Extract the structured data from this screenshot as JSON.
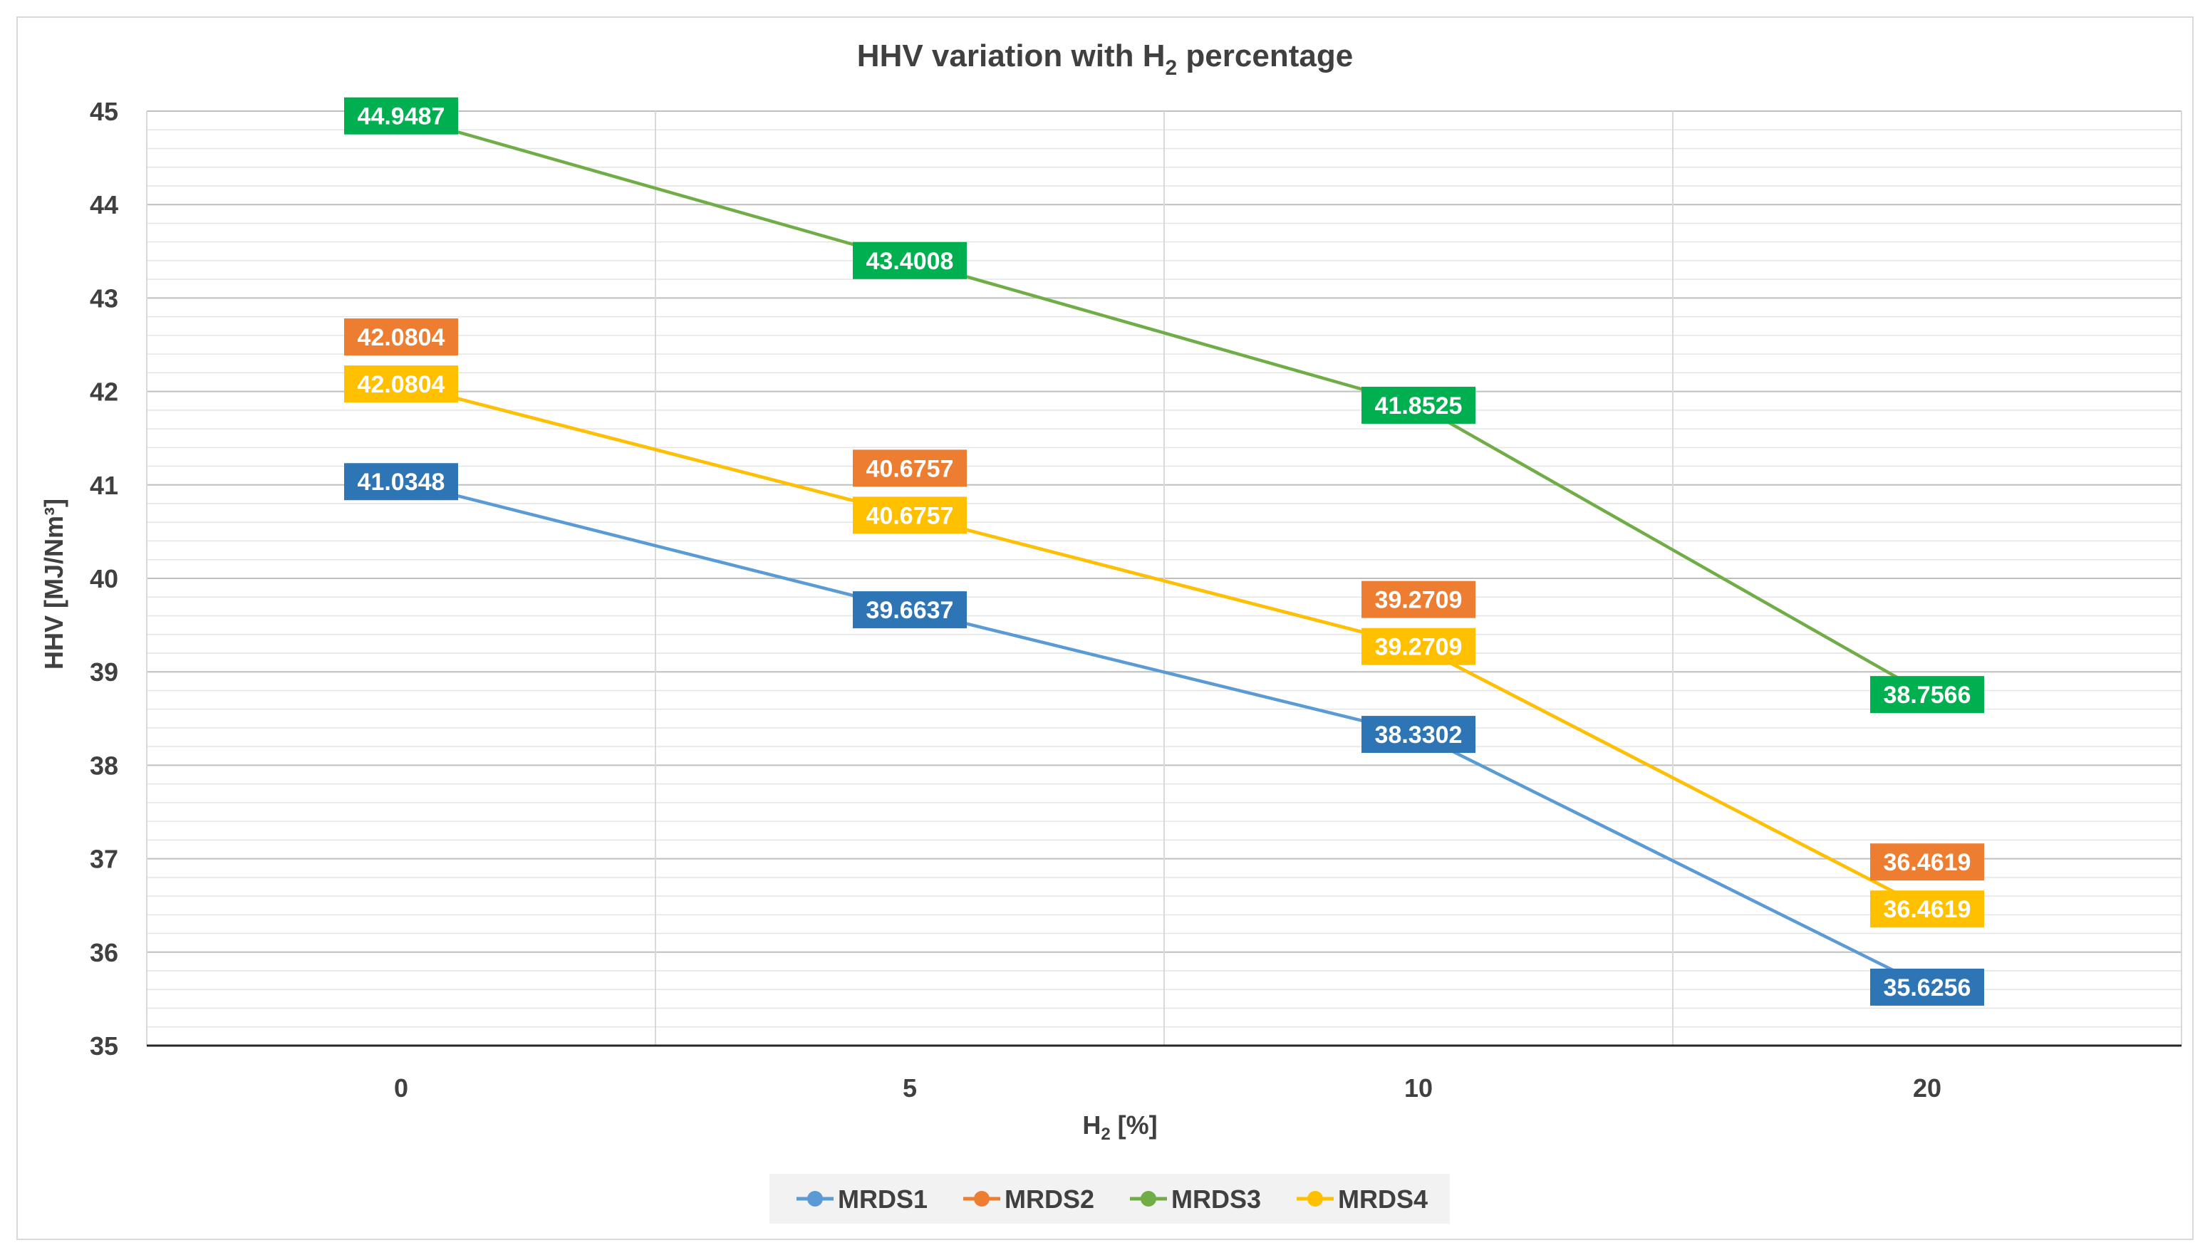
{
  "chart_data": {
    "type": "line",
    "title": "HHV variation with H",
    "title_sub": "2",
    "title_suffix": " percentage",
    "xlabel": "H",
    "xlabel_sub": "2",
    "xlabel_suffix": " [%]",
    "ylabel": "HHV [MJ/Nm³]",
    "categories": [
      "0",
      "5",
      "10",
      "20"
    ],
    "ylim": [
      35,
      45
    ],
    "yticks": [
      "35",
      "36",
      "37",
      "38",
      "39",
      "40",
      "41",
      "42",
      "43",
      "44",
      "45"
    ],
    "minor_step": 0.2,
    "grid": true,
    "legend": "bottom",
    "series": [
      {
        "name": "MRDS1",
        "color": "#5B9BD5",
        "label_bg": "#2E75B6",
        "label_pos": "center",
        "values": [
          41.0348,
          39.6637,
          38.3302,
          35.6256
        ],
        "labels": [
          "41.0348",
          "39.6637",
          "38.3302",
          "35.6256"
        ]
      },
      {
        "name": "MRDS2",
        "color": "#ED7D31",
        "label_bg": "#ED7D31",
        "label_pos": "above",
        "values": [
          42.0804,
          40.6757,
          39.2709,
          36.4619
        ],
        "labels": [
          "42.0804",
          "40.6757",
          "39.2709",
          "36.4619"
        ]
      },
      {
        "name": "MRDS3",
        "color": "#70AD47",
        "label_bg": "#00B050",
        "label_pos": "center",
        "values": [
          44.9487,
          43.4008,
          41.8525,
          38.7566
        ],
        "labels": [
          "44.9487",
          "43.4008",
          "41.8525",
          "38.7566"
        ]
      },
      {
        "name": "MRDS4",
        "color": "#FFC000",
        "label_bg": "#FFC000",
        "label_pos": "center",
        "values": [
          42.0804,
          40.6757,
          39.2709,
          36.4619
        ],
        "labels": [
          "42.0804",
          "40.6757",
          "39.2709",
          "36.4619"
        ]
      }
    ]
  }
}
